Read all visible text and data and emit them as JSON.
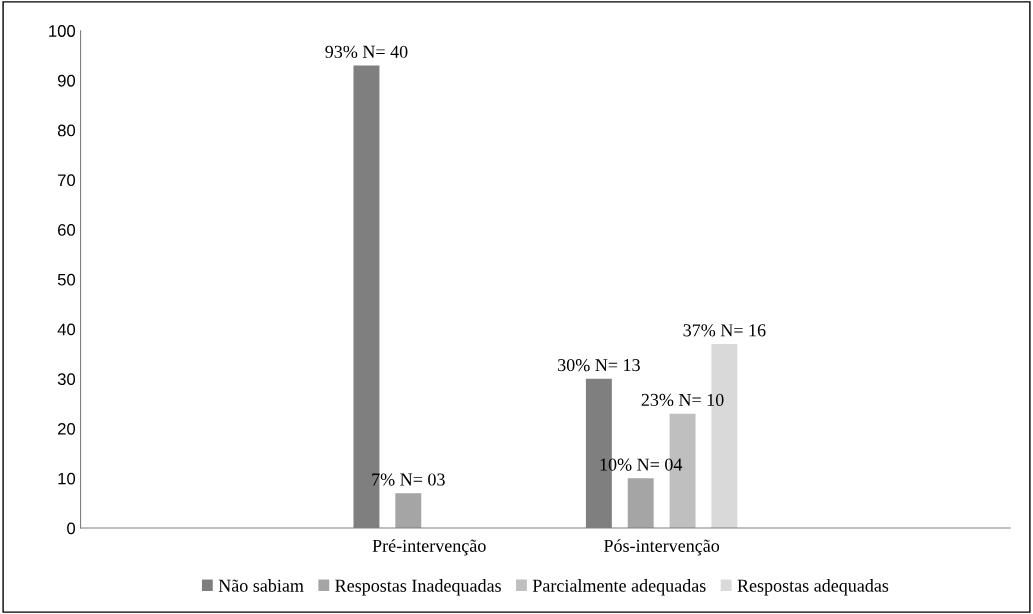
{
  "chart_data": {
    "type": "bar",
    "categories": [
      null,
      "Pré-intervenção",
      "Pós-intervenção",
      null
    ],
    "series": [
      {
        "name": "Não sabiam",
        "color": "#7f7f7f",
        "values": [
          null,
          93,
          30,
          null
        ],
        "value_labels": [
          null,
          "93% N= 40",
          "30% N= 13",
          null
        ]
      },
      {
        "name": "Respostas Inadequadas",
        "color": "#a5a5a5",
        "values": [
          null,
          7,
          10,
          null
        ],
        "value_labels": [
          null,
          "7% N= 03",
          "10% N= 04",
          null
        ]
      },
      {
        "name": "Parcialmente adequadas",
        "color": "#bfbfbf",
        "values": [
          null,
          null,
          23,
          null
        ],
        "value_labels": [
          null,
          null,
          "23% N= 10",
          null
        ]
      },
      {
        "name": "Respostas adequadas",
        "color": "#d9d9d9",
        "values": [
          null,
          null,
          37,
          null
        ],
        "value_labels": [
          null,
          null,
          "37% N= 16",
          null
        ]
      }
    ],
    "ylim": [
      0,
      100
    ],
    "yticks": [
      0,
      10,
      20,
      30,
      40,
      50,
      60,
      70,
      80,
      90,
      100
    ],
    "grid": false,
    "legend": "bottom"
  }
}
